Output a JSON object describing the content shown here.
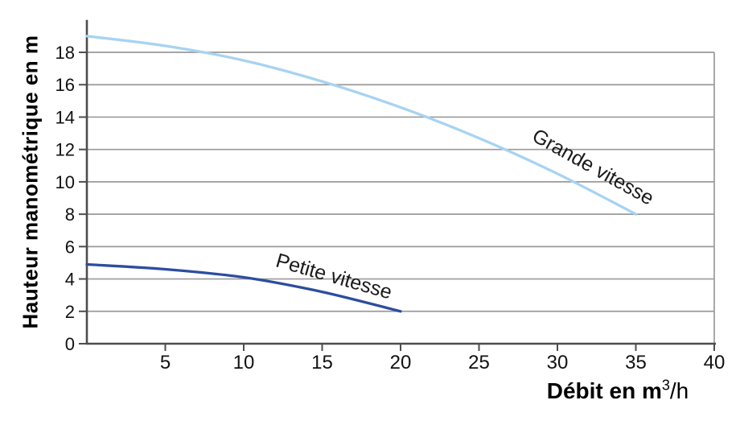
{
  "chart_data": {
    "type": "line",
    "title": "",
    "ylabel": "Hauteur manométrique en m",
    "xlabel_prefix": "Débit en m",
    "xlabel_sup": "3",
    "xlabel_suffix": "/h",
    "xlim": [
      0,
      40
    ],
    "ylim": [
      0,
      20
    ],
    "x_ticks": [
      5,
      10,
      15,
      20,
      25,
      30,
      35,
      40
    ],
    "y_ticks": [
      0,
      2,
      4,
      6,
      8,
      10,
      12,
      14,
      16,
      18
    ],
    "grid": "horizontal-lines-only",
    "legend_position": "labels-along-curves",
    "colors": {
      "axis": "#4d4d4d",
      "gridline": "#9a9a9a",
      "grande_vitesse": "#a7d3f2",
      "petite_vitesse": "#2c4da0",
      "text": "#111111"
    },
    "series": [
      {
        "name": "Grande vitesse",
        "color_key": "grande_vitesse",
        "points": [
          [
            0,
            19.0
          ],
          [
            5,
            18.4
          ],
          [
            10,
            17.5
          ],
          [
            15,
            16.2
          ],
          [
            20,
            14.6
          ],
          [
            25,
            12.7
          ],
          [
            30,
            10.5
          ],
          [
            35,
            8.0
          ]
        ]
      },
      {
        "name": "Petite vitesse",
        "color_key": "petite_vitesse",
        "points": [
          [
            0,
            4.9
          ],
          [
            5,
            4.6
          ],
          [
            10,
            4.1
          ],
          [
            15,
            3.2
          ],
          [
            20,
            2.0
          ]
        ]
      }
    ]
  }
}
